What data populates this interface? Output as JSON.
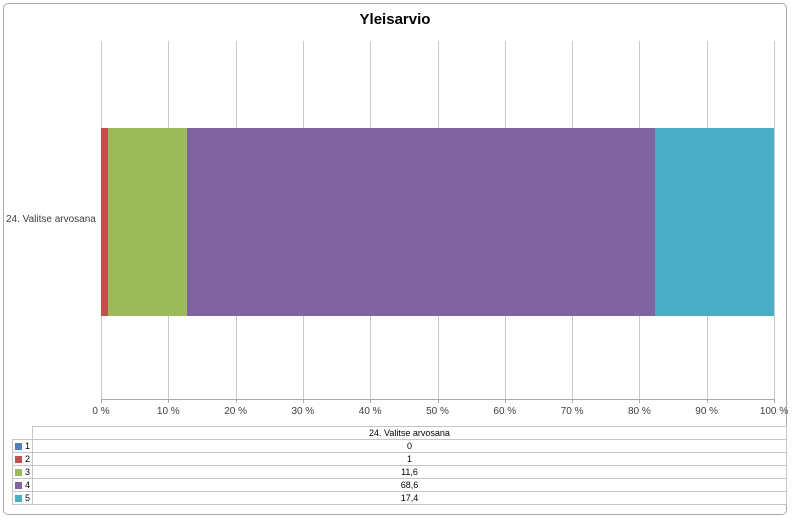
{
  "chart_data": {
    "type": "bar",
    "subtype": "100-percent-stacked-horizontal",
    "title": "Yleisarvio",
    "categories": [
      "24. Valitse arvosana"
    ],
    "series": [
      {
        "name": "1",
        "color": "#4F81BD",
        "values": [
          0
        ],
        "display": "0"
      },
      {
        "name": "2",
        "color": "#C0504D",
        "values": [
          1
        ],
        "display": "1"
      },
      {
        "name": "3",
        "color": "#9BBB59",
        "values": [
          11.6
        ],
        "display": "11,6"
      },
      {
        "name": "4",
        "color": "#8064A2",
        "values": [
          68.6
        ],
        "display": "68,6"
      },
      {
        "name": "5",
        "color": "#4BACC6",
        "values": [
          17.4
        ],
        "display": "17,4"
      }
    ],
    "x_axis": {
      "ticks": [
        "0 %",
        "10 %",
        "20 %",
        "30 %",
        "40 %",
        "50 %",
        "60 %",
        "70 %",
        "80 %",
        "90 %",
        "100 %"
      ],
      "min": 0,
      "max": 100,
      "unit": "%",
      "grid": true
    },
    "ylabel": "",
    "xlabel": "",
    "legend_position": "data-table-below"
  },
  "table": {
    "header": "24. Valitse arvosana"
  },
  "colors": {
    "frame_border": "#ababab",
    "gridline": "#c9c9c9",
    "table_border": "#c6c6c6",
    "background": "#ffffff"
  }
}
